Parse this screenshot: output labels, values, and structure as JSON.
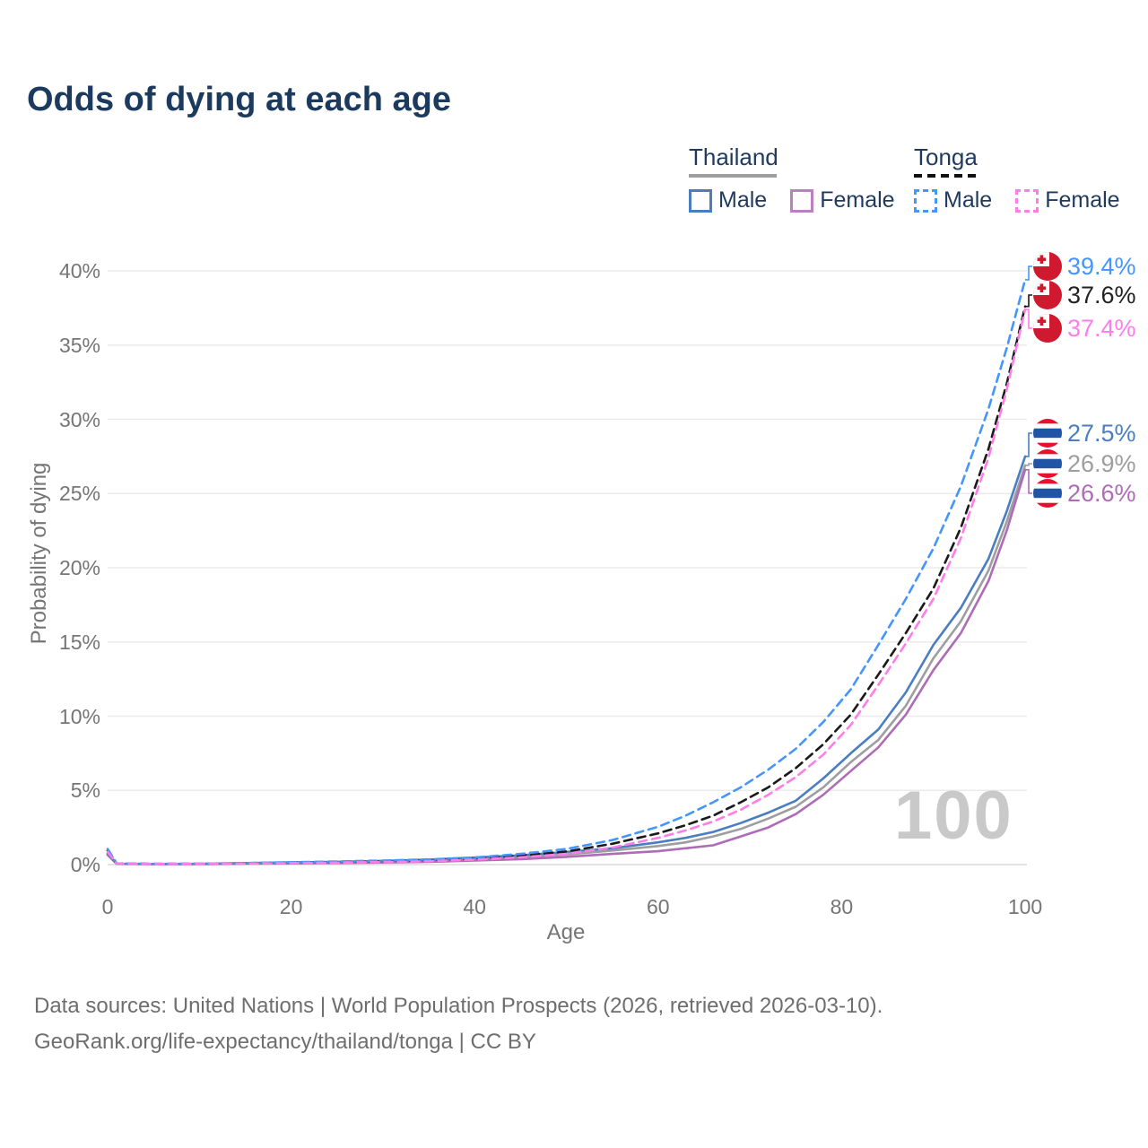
{
  "title": "Odds of dying at each age",
  "legend": {
    "groups": [
      {
        "name": "Thailand",
        "line_style": "solid",
        "underline_color": "#9e9e9e",
        "items": [
          {
            "label": "Male",
            "color": "#4a7ec0"
          },
          {
            "label": "Female",
            "color": "#bd7fc4"
          }
        ]
      },
      {
        "name": "Tonga",
        "line_style": "dashed",
        "underline_color": "#111111",
        "items": [
          {
            "label": "Male",
            "color": "#4495fe"
          },
          {
            "label": "Female",
            "color": "#ff7de9"
          }
        ]
      }
    ]
  },
  "chart_data": {
    "type": "line",
    "title": "Odds of dying at each age",
    "xlabel": "Age",
    "ylabel": "Probability of dying",
    "xlim": [
      0,
      100
    ],
    "ylim_percent": [
      0,
      40
    ],
    "x_ticks": [
      0,
      20,
      40,
      60,
      80,
      100
    ],
    "y_ticks_percent": [
      "0%",
      "5%",
      "10%",
      "15%",
      "20%",
      "25%",
      "30%",
      "35%",
      "40%"
    ],
    "y_tick_values": [
      0,
      5,
      10,
      15,
      20,
      25,
      30,
      35,
      40
    ],
    "grid": true,
    "legend_position": "top-right",
    "watermark": "100",
    "x": [
      0,
      1,
      5,
      10,
      15,
      20,
      25,
      30,
      35,
      40,
      45,
      50,
      55,
      60,
      63,
      66,
      69,
      72,
      75,
      78,
      81,
      84,
      87,
      90,
      93,
      96,
      98,
      100
    ],
    "series": [
      {
        "name": "Tonga — Male",
        "country": "Tonga",
        "sex": "male",
        "line": "dashed",
        "color": "#4495fe",
        "end_label": "39.4%",
        "flag": "tonga",
        "values": [
          1.05,
          0.08,
          0.05,
          0.06,
          0.1,
          0.16,
          0.21,
          0.27,
          0.35,
          0.48,
          0.72,
          1.05,
          1.65,
          2.55,
          3.3,
          4.2,
          5.2,
          6.4,
          7.8,
          9.6,
          11.8,
          14.8,
          17.9,
          21.3,
          25.5,
          30.7,
          34.8,
          39.4
        ]
      },
      {
        "name": "Tonga — Both sexes",
        "country": "Tonga",
        "sex": "both",
        "line": "dashed",
        "color": "#1a1a1a",
        "end_label": "37.6%",
        "flag": "tonga",
        "values": [
          0.95,
          0.07,
          0.05,
          0.05,
          0.09,
          0.13,
          0.17,
          0.22,
          0.29,
          0.4,
          0.6,
          0.88,
          1.4,
          2.1,
          2.65,
          3.3,
          4.2,
          5.2,
          6.5,
          8.1,
          10.1,
          12.8,
          15.6,
          18.6,
          22.7,
          28.0,
          32.4,
          37.6
        ]
      },
      {
        "name": "Tonga — Female",
        "country": "Tonga",
        "sex": "female",
        "line": "dashed",
        "color": "#ff7de9",
        "end_label": "37.4%",
        "flag": "tonga",
        "values": [
          0.85,
          0.06,
          0.04,
          0.05,
          0.07,
          0.1,
          0.13,
          0.17,
          0.23,
          0.33,
          0.49,
          0.72,
          1.15,
          1.8,
          2.3,
          2.9,
          3.7,
          4.7,
          5.9,
          7.4,
          9.4,
          12.1,
          14.9,
          17.9,
          22.0,
          27.4,
          32.0,
          37.4
        ]
      },
      {
        "name": "Thailand — Male",
        "country": "Thailand",
        "sex": "male",
        "line": "solid",
        "color": "#4a7ec0",
        "end_label": "27.5%",
        "flag": "thailand",
        "values": [
          0.75,
          0.06,
          0.04,
          0.05,
          0.1,
          0.15,
          0.19,
          0.25,
          0.34,
          0.47,
          0.62,
          0.85,
          1.1,
          1.5,
          1.8,
          2.2,
          2.8,
          3.5,
          4.3,
          5.8,
          7.5,
          9.1,
          11.6,
          14.8,
          17.3,
          20.6,
          23.8,
          27.5
        ]
      },
      {
        "name": "Thailand — Both sexes",
        "country": "Thailand",
        "sex": "both",
        "line": "solid",
        "color": "#9e9e9e",
        "end_label": "26.9%",
        "flag": "thailand",
        "values": [
          0.7,
          0.05,
          0.03,
          0.04,
          0.08,
          0.12,
          0.15,
          0.2,
          0.27,
          0.37,
          0.5,
          0.68,
          0.95,
          1.25,
          1.5,
          1.9,
          2.4,
          3.1,
          3.9,
          5.2,
          6.9,
          8.4,
          10.7,
          13.9,
          16.4,
          19.8,
          23.1,
          26.9
        ]
      },
      {
        "name": "Thailand — Female",
        "country": "Thailand",
        "sex": "female",
        "line": "solid",
        "color": "#ad6cb5",
        "end_label": "26.6%",
        "flag": "thailand",
        "values": [
          0.65,
          0.05,
          0.03,
          0.03,
          0.06,
          0.08,
          0.11,
          0.14,
          0.19,
          0.27,
          0.37,
          0.52,
          0.72,
          0.9,
          1.1,
          1.3,
          1.9,
          2.5,
          3.4,
          4.7,
          6.3,
          7.9,
          10.1,
          13.1,
          15.6,
          19.1,
          22.5,
          26.6
        ]
      }
    ],
    "flag_colors": {
      "tonga_red": "#d0192f",
      "thailand_red": "#e8112d",
      "thailand_blue": "#1f55a4"
    }
  },
  "footer": {
    "line1": "Data sources: United Nations | World Population Prospects (2026, retrieved 2026-03-10).",
    "line2": "GeoRank.org/life-expectancy/thailand/tonga | CC BY"
  }
}
